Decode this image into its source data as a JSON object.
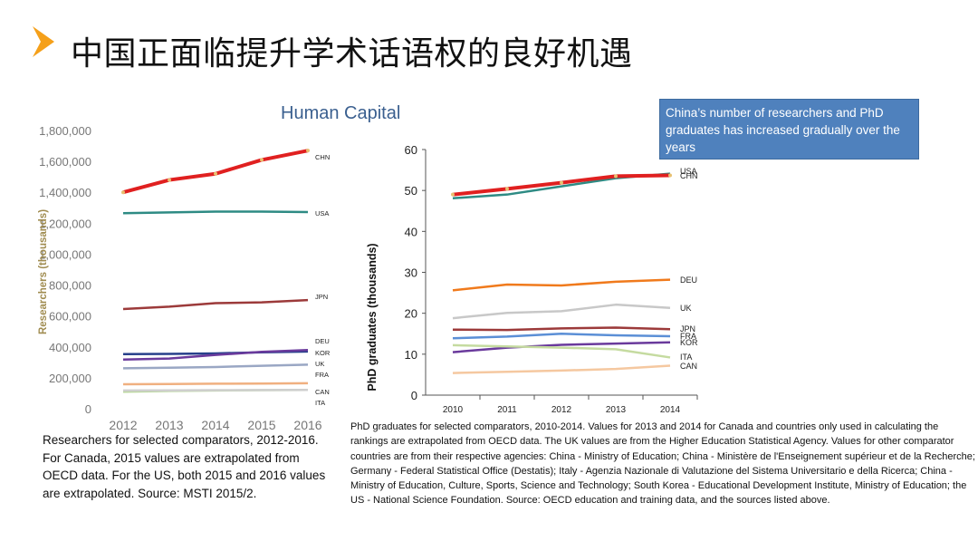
{
  "slide": {
    "title": "中国正面临提升学术话语权的良好机遇",
    "heading": "Human Capital",
    "callout": "China’s number of researchers and PhD graduates has increased gradually over the years",
    "accent_color": "#f5a01a"
  },
  "captions": {
    "left": "Researchers for selected comparators, 2012-2016. For Canada, 2015 values are extrapolated from OECD data. For the US, both 2015 and 2016 values are extrapolated. Source: MSTI 2015/2.",
    "right": "PhD graduates for selected comparators, 2010-2014. Values for 2013 and 2014 for Canada and countries only used in calculating the rankings are extrapolated from OECD data. The UK values are from the Higher Education Statistical Agency. Values for other comparator countries are from their respective agencies: China - Ministry of Education; China - Ministère de l'Enseignement supérieur et de la Recherche; Germany - Federal Statistical Office (Destatis); Italy - Agenzia Nazionale di Valutazione del Sistema Universitario e della Ricerca; China - Ministry of Education, Culture, Sports, Science and Technology; South Korea - Educational Development Institute, Ministry of Education; the US - National Science Foundation. Source: OECD education and training data, and the sources listed above."
  },
  "chart_data": [
    {
      "type": "line",
      "title": "",
      "xlabel": "",
      "ylabel": "Researchers (thousands)",
      "x": [
        "2012",
        "2013",
        "2014",
        "2015",
        "2016"
      ],
      "ylim": [
        0,
        1800000
      ],
      "yticks": [
        "0",
        "200,000",
        "400,000",
        "600,000",
        "800,000",
        "1,000,000",
        "1,200,000",
        "1,400,000",
        "1,600,000",
        "1,800,000"
      ],
      "grid": false,
      "series": [
        {
          "name": "CHN",
          "color": "#e02020",
          "values": [
            1400000,
            1480000,
            1520000,
            1610000,
            1670000
          ]
        },
        {
          "name": "USA",
          "color": "#2e8b84",
          "values": [
            1265000,
            1270000,
            1275000,
            1275000,
            1272000
          ]
        },
        {
          "name": "JPN",
          "color": "#9c3a3a",
          "values": [
            645000,
            660000,
            683000,
            688000,
            703000
          ]
        },
        {
          "name": "DEU",
          "color": "#27408b",
          "values": [
            353000,
            355000,
            358000,
            365000,
            370000
          ]
        },
        {
          "name": "KOR",
          "color": "#6a3a9c",
          "values": [
            318000,
            325000,
            348000,
            368000,
            380000
          ]
        },
        {
          "name": "UK",
          "color": "#9aa7c4",
          "values": [
            262000,
            265000,
            270000,
            278000,
            285000
          ]
        },
        {
          "name": "FRA",
          "color": "#f0b080",
          "values": [
            158000,
            160000,
            162000,
            163000,
            165000
          ]
        },
        {
          "name": "CAN",
          "color": "#b9d89a",
          "values": [
            110000,
            115000,
            118000,
            120000,
            122000
          ]
        },
        {
          "name": "ITA",
          "color": "#cfcfcf",
          "values": [
            118000,
            119000,
            120000,
            121000,
            122000
          ]
        }
      ]
    },
    {
      "type": "line",
      "title": "",
      "xlabel": "",
      "ylabel": "PhD graduates (thousands)",
      "x": [
        "2010",
        "2011",
        "2012",
        "2013",
        "2014"
      ],
      "ylim": [
        0,
        60
      ],
      "yticks": [
        "0",
        "10",
        "20",
        "30",
        "40",
        "50",
        "60"
      ],
      "grid": false,
      "series": [
        {
          "name": "USA",
          "color": "#2e8b84",
          "values": [
            48.1,
            49.0,
            51.0,
            53.0,
            54.1
          ]
        },
        {
          "name": "CHN",
          "color": "#e02020",
          "values": [
            49.0,
            50.4,
            51.9,
            53.5,
            53.7
          ]
        },
        {
          "name": "DEU",
          "color": "#f07a1c",
          "values": [
            25.6,
            27.0,
            26.8,
            27.7,
            28.2
          ]
        },
        {
          "name": "UK",
          "color": "#c8c8c8",
          "values": [
            18.8,
            20.1,
            20.5,
            22.1,
            21.3
          ]
        },
        {
          "name": "JPN",
          "color": "#9c3a3a",
          "values": [
            16.0,
            15.9,
            16.3,
            16.5,
            16.1
          ]
        },
        {
          "name": "FRA",
          "color": "#5b8fd6",
          "values": [
            13.9,
            14.3,
            15.0,
            14.6,
            14.4
          ]
        },
        {
          "name": "KOR",
          "color": "#6a3a9c",
          "values": [
            10.5,
            11.6,
            12.3,
            12.6,
            12.9
          ]
        },
        {
          "name": "ITA",
          "color": "#c5dba0",
          "values": [
            12.2,
            11.9,
            11.6,
            11.2,
            9.2
          ]
        },
        {
          "name": "CAN",
          "color": "#f5c8a0",
          "values": [
            5.4,
            5.7,
            6.0,
            6.4,
            7.2
          ]
        }
      ]
    }
  ]
}
